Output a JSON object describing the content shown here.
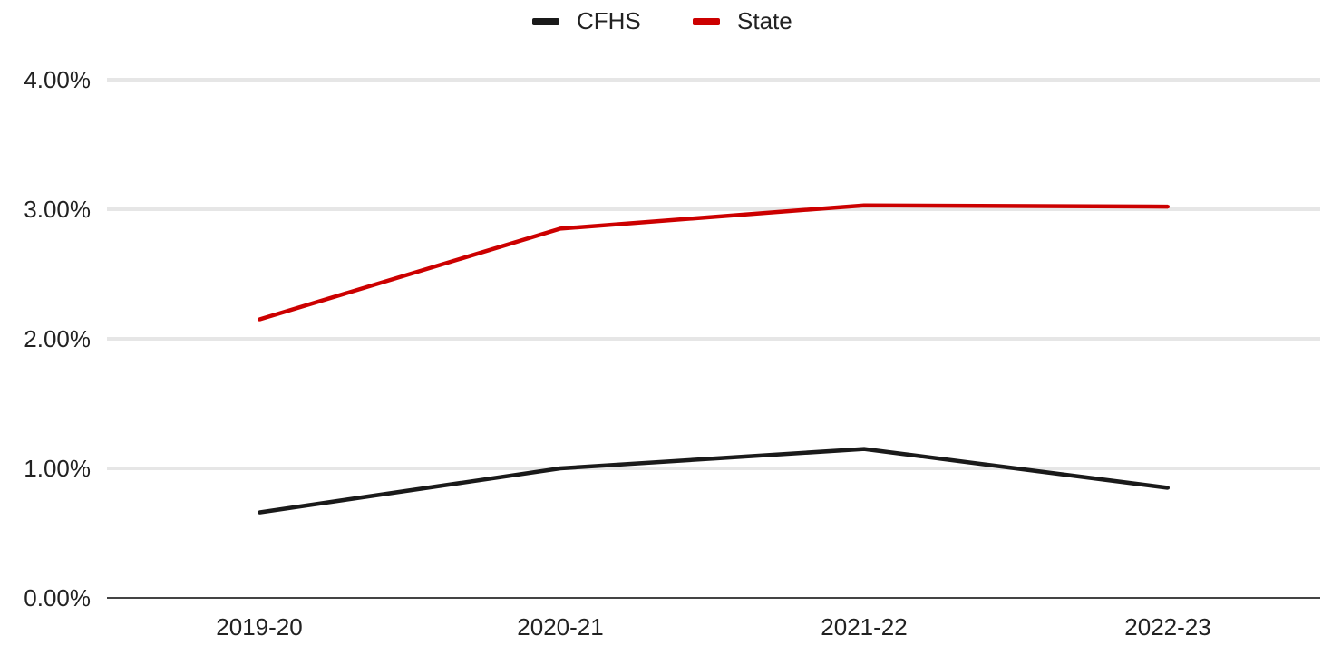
{
  "chart_data": {
    "type": "line",
    "categories": [
      "2019-20",
      "2020-21",
      "2021-22",
      "2022-23"
    ],
    "series": [
      {
        "name": "CFHS",
        "color": "#1a1a1a",
        "values": [
          0.0066,
          0.01,
          0.0115,
          0.0085
        ]
      },
      {
        "name": "State",
        "color": "#cc0000",
        "values": [
          0.0215,
          0.0285,
          0.0303,
          0.0302
        ]
      }
    ],
    "ylim": [
      0,
      0.04
    ],
    "yticks": [
      {
        "value": 0,
        "label": "0.00%"
      },
      {
        "value": 0.01,
        "label": "1.00%"
      },
      {
        "value": 0.02,
        "label": "2.00%"
      },
      {
        "value": 0.03,
        "label": "3.00%"
      },
      {
        "value": 0.04,
        "label": "4.00%"
      }
    ],
    "grid": true,
    "legend_position": "top-center",
    "title": "",
    "xlabel": "",
    "ylabel": ""
  }
}
